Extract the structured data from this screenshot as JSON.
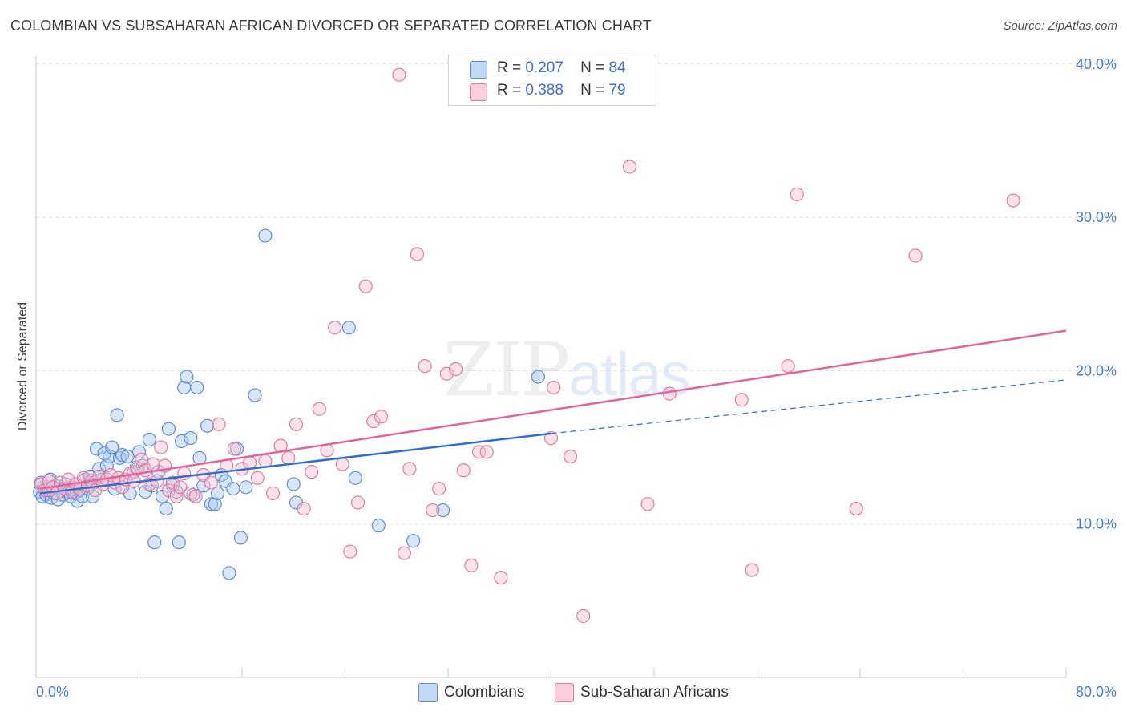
{
  "title": "COLOMBIAN VS SUBSAHARAN AFRICAN DIVORCED OR SEPARATED CORRELATION CHART",
  "source": "Source: ZipAtlas.com",
  "watermark": {
    "zip": "ZIP",
    "atlas": "atlas"
  },
  "legend": {
    "r_label": "R =",
    "n_label": "N =",
    "rows": [
      {
        "r": "0.207",
        "n": "84",
        "color": "#a9c8f0",
        "stroke": "#5b8fd6"
      },
      {
        "r": "0.388",
        "n": "79",
        "color": "#f8c0d2",
        "stroke": "#e07aa0"
      }
    ]
  },
  "bottom_legend": [
    "Colombians",
    "Sub-Saharan Africans"
  ],
  "chart_data": {
    "type": "scatter",
    "title": "COLOMBIAN VS SUBSAHARAN AFRICAN DIVORCED OR SEPARATED CORRELATION CHART",
    "xlabel": "",
    "ylabel": "Divorced or Separated",
    "xlim": [
      0,
      80
    ],
    "ylim": [
      0,
      41.5
    ],
    "x_tick_labels": [
      "0.0%",
      "80.0%"
    ],
    "y_ticks": [
      10,
      20,
      30,
      40
    ],
    "y_tick_labels": [
      "10.0%",
      "20.0%",
      "30.0%",
      "40.0%"
    ],
    "grid": true,
    "legend_position": "top-center",
    "series": [
      {
        "name": "Colombians",
        "color": "#a9c8f0",
        "stroke": "#5b8fd6",
        "line_color": "#2f6fd1",
        "trend": {
          "x0": 0.3,
          "y0": 12.0,
          "x1": 40.0,
          "y1": 15.9,
          "dash_x1": 80.0,
          "dash_y1": 19.4
        },
        "points": [
          [
            0.3,
            12.1
          ],
          [
            0.5,
            11.8
          ],
          [
            0.6,
            12.4
          ],
          [
            0.8,
            11.9
          ],
          [
            1.0,
            12.2
          ],
          [
            1.2,
            11.7
          ],
          [
            1.4,
            12.0
          ],
          [
            1.5,
            12.5
          ],
          [
            1.7,
            11.6
          ],
          [
            1.9,
            12.3
          ],
          [
            2.1,
            11.9
          ],
          [
            2.3,
            12.6
          ],
          [
            2.5,
            12.1
          ],
          [
            2.7,
            11.8
          ],
          [
            2.8,
            12.4
          ],
          [
            3.0,
            12.0
          ],
          [
            3.2,
            11.5
          ],
          [
            3.4,
            12.2
          ],
          [
            3.6,
            11.8
          ],
          [
            3.8,
            12.9
          ],
          [
            4.0,
            12.3
          ],
          [
            4.2,
            13.1
          ],
          [
            4.4,
            11.8
          ],
          [
            4.5,
            12.7
          ],
          [
            4.7,
            14.9
          ],
          [
            4.9,
            13.6
          ],
          [
            5.1,
            12.9
          ],
          [
            5.3,
            14.6
          ],
          [
            5.5,
            13.8
          ],
          [
            5.7,
            14.4
          ],
          [
            5.9,
            15.0
          ],
          [
            6.1,
            12.3
          ],
          [
            6.3,
            17.1
          ],
          [
            6.5,
            14.3
          ],
          [
            6.7,
            14.5
          ],
          [
            6.9,
            12.9
          ],
          [
            7.1,
            14.4
          ],
          [
            7.3,
            12.0
          ],
          [
            7.6,
            13.4
          ],
          [
            7.8,
            13.7
          ],
          [
            8.0,
            14.7
          ],
          [
            8.3,
            13.8
          ],
          [
            8.5,
            12.1
          ],
          [
            8.8,
            15.5
          ],
          [
            9.0,
            12.5
          ],
          [
            9.2,
            8.8
          ],
          [
            9.5,
            13.4
          ],
          [
            9.8,
            11.8
          ],
          [
            10.1,
            11.0
          ],
          [
            10.3,
            16.2
          ],
          [
            10.6,
            12.5
          ],
          [
            10.9,
            12.1
          ],
          [
            11.1,
            8.8
          ],
          [
            11.3,
            15.4
          ],
          [
            11.5,
            18.9
          ],
          [
            11.7,
            19.6
          ],
          [
            12.0,
            15.6
          ],
          [
            12.2,
            11.9
          ],
          [
            12.5,
            18.9
          ],
          [
            12.7,
            14.3
          ],
          [
            13.0,
            12.5
          ],
          [
            13.3,
            16.4
          ],
          [
            13.6,
            11.3
          ],
          [
            13.9,
            11.3
          ],
          [
            14.1,
            12.0
          ],
          [
            14.4,
            13.2
          ],
          [
            14.7,
            12.8
          ],
          [
            15.0,
            6.8
          ],
          [
            15.3,
            12.3
          ],
          [
            15.6,
            14.9
          ],
          [
            15.9,
            9.1
          ],
          [
            16.3,
            12.4
          ],
          [
            17.0,
            18.4
          ],
          [
            17.8,
            28.8
          ],
          [
            20.0,
            12.6
          ],
          [
            20.2,
            11.4
          ],
          [
            24.3,
            22.8
          ],
          [
            24.8,
            13.0
          ],
          [
            26.6,
            9.9
          ],
          [
            29.3,
            8.9
          ],
          [
            31.6,
            10.9
          ],
          [
            39.0,
            19.6
          ],
          [
            0.4,
            12.7
          ],
          [
            1.1,
            12.9
          ]
        ]
      },
      {
        "name": "Sub-Saharan Africans",
        "color": "#f8c0d2",
        "stroke": "#e07aa0",
        "line_color": "#e0669a",
        "trend": {
          "x0": 0.3,
          "y0": 12.3,
          "x1": 80.0,
          "y1": 22.6
        },
        "points": [
          [
            0.4,
            12.6
          ],
          [
            0.7,
            12.2
          ],
          [
            1.0,
            12.8
          ],
          [
            1.3,
            12.4
          ],
          [
            1.6,
            12.0
          ],
          [
            1.9,
            12.7
          ],
          [
            2.2,
            12.3
          ],
          [
            2.5,
            12.9
          ],
          [
            2.8,
            12.1
          ],
          [
            3.1,
            12.6
          ],
          [
            3.4,
            12.3
          ],
          [
            3.7,
            13.0
          ],
          [
            4.0,
            12.5
          ],
          [
            4.3,
            12.8
          ],
          [
            4.6,
            12.2
          ],
          [
            4.9,
            13.1
          ],
          [
            5.2,
            12.6
          ],
          [
            5.5,
            12.9
          ],
          [
            5.8,
            13.2
          ],
          [
            6.1,
            12.7
          ],
          [
            6.4,
            13.0
          ],
          [
            6.7,
            12.4
          ],
          [
            7.0,
            12.9
          ],
          [
            7.3,
            13.3
          ],
          [
            7.6,
            12.8
          ],
          [
            7.9,
            13.6
          ],
          [
            8.2,
            14.2
          ],
          [
            8.5,
            13.5
          ],
          [
            8.8,
            12.6
          ],
          [
            9.1,
            13.9
          ],
          [
            9.4,
            12.8
          ],
          [
            9.7,
            15.0
          ],
          [
            10.0,
            13.8
          ],
          [
            10.3,
            12.2
          ],
          [
            10.6,
            12.7
          ],
          [
            10.9,
            11.8
          ],
          [
            11.2,
            12.4
          ],
          [
            11.5,
            13.3
          ],
          [
            12.0,
            12.0
          ],
          [
            12.4,
            11.8
          ],
          [
            13.0,
            13.2
          ],
          [
            13.6,
            12.7
          ],
          [
            14.2,
            16.5
          ],
          [
            14.8,
            13.8
          ],
          [
            15.4,
            14.9
          ],
          [
            16.0,
            13.6
          ],
          [
            16.6,
            14.0
          ],
          [
            17.2,
            13.0
          ],
          [
            17.8,
            14.1
          ],
          [
            18.4,
            12.0
          ],
          [
            19.0,
            15.1
          ],
          [
            19.6,
            14.3
          ],
          [
            20.2,
            16.5
          ],
          [
            20.8,
            11.0
          ],
          [
            21.4,
            13.4
          ],
          [
            22.0,
            17.5
          ],
          [
            22.6,
            14.8
          ],
          [
            23.2,
            22.8
          ],
          [
            23.8,
            13.9
          ],
          [
            24.4,
            8.2
          ],
          [
            25.0,
            11.4
          ],
          [
            25.6,
            25.5
          ],
          [
            26.2,
            16.7
          ],
          [
            26.8,
            17.0
          ],
          [
            28.2,
            39.3
          ],
          [
            28.6,
            8.1
          ],
          [
            29.0,
            13.6
          ],
          [
            29.6,
            27.6
          ],
          [
            30.2,
            20.3
          ],
          [
            30.8,
            10.9
          ],
          [
            31.3,
            12.3
          ],
          [
            31.9,
            19.8
          ],
          [
            32.6,
            20.1
          ],
          [
            33.2,
            13.5
          ],
          [
            33.8,
            7.3
          ],
          [
            34.4,
            14.7
          ],
          [
            35.0,
            14.7
          ],
          [
            36.1,
            6.5
          ],
          [
            40.0,
            15.6
          ]
        ]
      },
      {
        "name": "Sub-Saharan Africans (spread)",
        "color": "#f8c0d2",
        "stroke": "#e07aa0",
        "points": [
          [
            40.2,
            18.9
          ],
          [
            41.5,
            14.4
          ],
          [
            42.5,
            4.0
          ],
          [
            46.1,
            33.3
          ],
          [
            47.5,
            11.3
          ],
          [
            49.2,
            18.5
          ],
          [
            54.8,
            18.1
          ],
          [
            55.6,
            7.0
          ],
          [
            58.4,
            20.3
          ],
          [
            59.1,
            31.5
          ],
          [
            63.7,
            11.0
          ],
          [
            68.3,
            27.5
          ],
          [
            75.9,
            31.1
          ]
        ]
      }
    ]
  }
}
